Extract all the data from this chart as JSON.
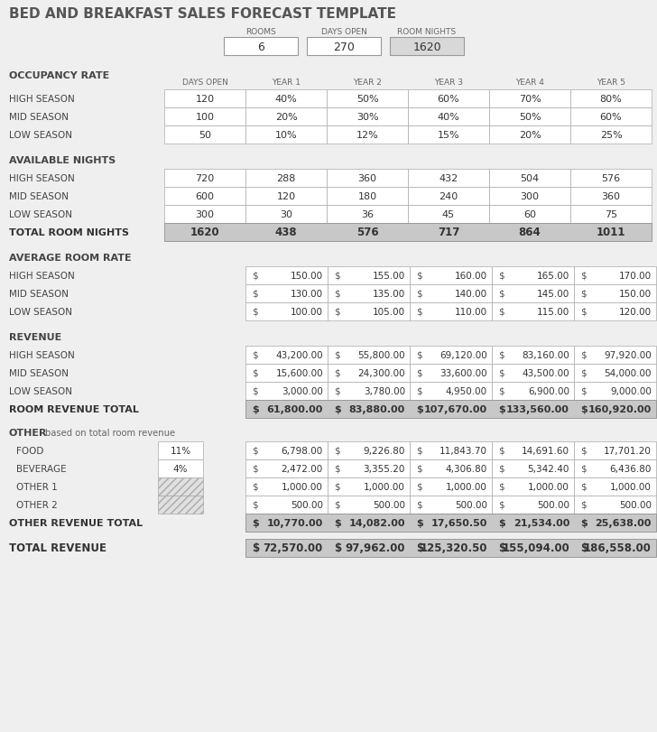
{
  "title": "BED AND BREAKFAST SALES FORECAST TEMPLATE",
  "title_color": "#5a5a5a",
  "bg_color": "#efefef",
  "white": "#ffffff",
  "total_bg": "#c8c8c8",
  "light_gray": "#d8d8d8",
  "rooms": 6,
  "days_open_total": 270,
  "room_nights_total": 1620,
  "occ_headers": [
    "DAYS OPEN",
    "YEAR 1",
    "YEAR 2",
    "YEAR 3",
    "YEAR 4",
    "YEAR 5"
  ],
  "occ_high": [
    120,
    "40%",
    "50%",
    "60%",
    "70%",
    "80%"
  ],
  "occ_mid": [
    100,
    "20%",
    "30%",
    "40%",
    "50%",
    "60%"
  ],
  "occ_low": [
    50,
    "10%",
    "12%",
    "15%",
    "20%",
    "25%"
  ],
  "an_high": [
    720,
    288,
    360,
    432,
    504,
    576
  ],
  "an_mid": [
    600,
    120,
    180,
    240,
    300,
    360
  ],
  "an_low": [
    300,
    30,
    36,
    45,
    60,
    75
  ],
  "an_total": [
    1620,
    438,
    576,
    717,
    864,
    1011
  ],
  "arr_high": [
    150.0,
    155.0,
    160.0,
    165.0,
    170.0
  ],
  "arr_mid": [
    130.0,
    135.0,
    140.0,
    145.0,
    150.0
  ],
  "arr_low": [
    100.0,
    105.0,
    110.0,
    115.0,
    120.0
  ],
  "rev_high": [
    43200.0,
    55800.0,
    69120.0,
    83160.0,
    97920.0
  ],
  "rev_mid": [
    15600.0,
    24300.0,
    33600.0,
    43500.0,
    54000.0
  ],
  "rev_low": [
    3000.0,
    3780.0,
    4950.0,
    6900.0,
    9000.0
  ],
  "rev_total": [
    61800.0,
    83880.0,
    107670.0,
    133560.0,
    160920.0
  ],
  "food_pct": "11%",
  "food": [
    6798.0,
    9226.8,
    11843.7,
    14691.6,
    17701.2
  ],
  "bev_pct": "4%",
  "bev": [
    2472.0,
    3355.2,
    4306.8,
    5342.4,
    6436.8
  ],
  "other1": [
    1000.0,
    1000.0,
    1000.0,
    1000.0,
    1000.0
  ],
  "other2": [
    500.0,
    500.0,
    500.0,
    500.0,
    500.0
  ],
  "oth_total": [
    10770.0,
    14082.0,
    17650.5,
    21534.0,
    25638.0
  ],
  "tot_rev": [
    72570.0,
    97962.0,
    125320.5,
    155094.0,
    186558.0
  ]
}
